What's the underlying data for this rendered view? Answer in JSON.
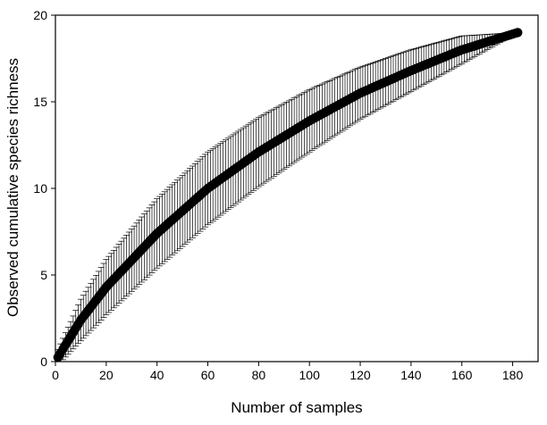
{
  "chart_data": {
    "type": "scatter",
    "title": "",
    "xlabel": "Number of samples",
    "ylabel": "Observed cumulative species richness",
    "xlim": [
      0,
      190
    ],
    "ylim": [
      0,
      20
    ],
    "x_ticks": [
      "0",
      "20",
      "40",
      "60",
      "80",
      "100",
      "120",
      "140",
      "160",
      "180"
    ],
    "y_ticks": [
      "0",
      "5",
      "10",
      "15",
      "20"
    ],
    "grid": false,
    "legend": "none",
    "series": [
      {
        "marker_color": "#000000",
        "error_bar_color": "#000000",
        "x_range": [
          1,
          182
        ],
        "points": [
          {
            "x": 1,
            "y": 0.25,
            "err": 0.45
          },
          {
            "x": 10,
            "y": 2.4,
            "err": 1.2
          },
          {
            "x": 20,
            "y": 4.3,
            "err": 1.6
          },
          {
            "x": 40,
            "y": 7.4,
            "err": 2.0
          },
          {
            "x": 60,
            "y": 10.0,
            "err": 2.1
          },
          {
            "x": 80,
            "y": 12.1,
            "err": 2.0
          },
          {
            "x": 100,
            "y": 13.9,
            "err": 1.8
          },
          {
            "x": 120,
            "y": 15.5,
            "err": 1.5
          },
          {
            "x": 140,
            "y": 16.8,
            "err": 1.2
          },
          {
            "x": 160,
            "y": 18.0,
            "err": 0.8
          },
          {
            "x": 182,
            "y": 19.0,
            "err": 0.0
          }
        ]
      }
    ]
  }
}
